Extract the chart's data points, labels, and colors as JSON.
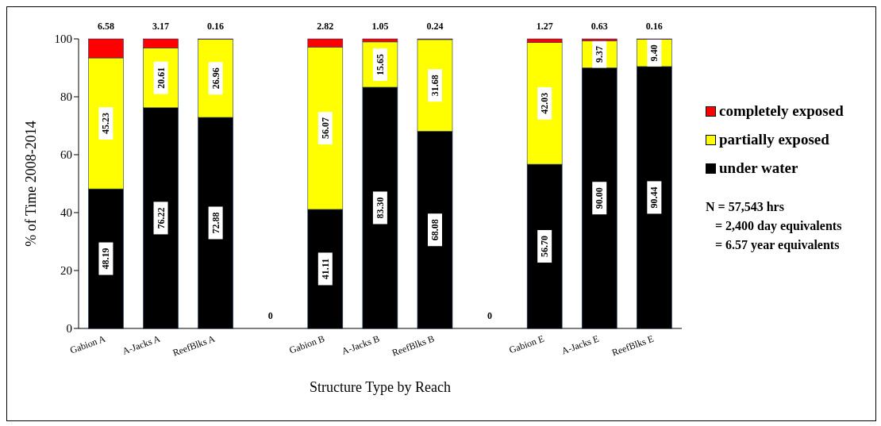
{
  "chart_data": {
    "type": "bar",
    "stacked": true,
    "xlabel": "Structure Type by Reach",
    "ylabel": "% of Time 2008-2014",
    "categories": [
      "Gabion A",
      "A-Jacks A",
      "ReefBlks A",
      null,
      "Gabion B",
      "A-Jacks B",
      "ReefBlks B",
      null,
      "Gabion E",
      "A-Jacks E",
      "ReefBlks E"
    ],
    "series": [
      {
        "name": "under water",
        "color": "#000000",
        "values": [
          48.19,
          76.22,
          72.88,
          0,
          41.11,
          83.3,
          68.08,
          0,
          56.7,
          90.0,
          90.44
        ],
        "value_labels": [
          "48.19",
          "76.22",
          "72.88",
          null,
          "41.11",
          "83.30",
          "68.08",
          null,
          "56.70",
          "90.00",
          "90.44"
        ]
      },
      {
        "name": "partially exposed",
        "color": "#ffff00",
        "values": [
          45.23,
          20.61,
          26.96,
          0,
          56.07,
          15.65,
          31.68,
          0,
          42.03,
          9.37,
          9.4
        ],
        "value_labels": [
          "45.23",
          "20.61",
          "26.96",
          null,
          "56.07",
          "15.65",
          "31.68",
          null,
          "42.03",
          "9.37",
          "9.40"
        ]
      },
      {
        "name": "completely exposed",
        "color": "#ff0000",
        "values": [
          6.58,
          3.17,
          0.16,
          0,
          2.82,
          1.05,
          0.24,
          0,
          1.27,
          0.63,
          0.16
        ],
        "value_labels": [
          "6.58",
          "3.17",
          "0.16",
          "0",
          "2.82",
          "1.05",
          "0.24",
          "0",
          "1.27",
          "0.63",
          "0.16"
        ]
      }
    ],
    "ylim": [
      0,
      100
    ],
    "yticks": [
      0,
      20,
      40,
      60,
      80,
      100
    ],
    "grid": false,
    "legend": "right",
    "annotations": [
      "N = 57,543 hrs",
      "= 2,400 day equivalents",
      "= 6.57 year equivalents"
    ]
  }
}
